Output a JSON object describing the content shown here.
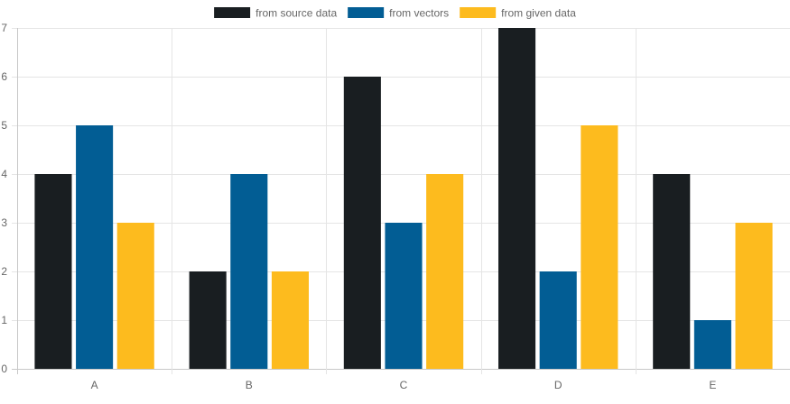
{
  "chart_data": {
    "type": "bar",
    "categories": [
      "A",
      "B",
      "C",
      "D",
      "E"
    ],
    "series": [
      {
        "name": "from source data",
        "values": [
          4,
          2,
          6,
          7,
          4
        ],
        "color": "#191e21"
      },
      {
        "name": "from vectors",
        "values": [
          5,
          4,
          3,
          2,
          1
        ],
        "color": "#025d94"
      },
      {
        "name": "from given data",
        "values": [
          3,
          2,
          4,
          5,
          3
        ],
        "color": "#fdbb1e"
      }
    ],
    "title": "",
    "xlabel": "",
    "ylabel": "",
    "ylim": [
      0,
      7
    ],
    "yticks": [
      0,
      1,
      2,
      3,
      4,
      5,
      6,
      7
    ],
    "grid": true,
    "legend_position": "top-center"
  }
}
